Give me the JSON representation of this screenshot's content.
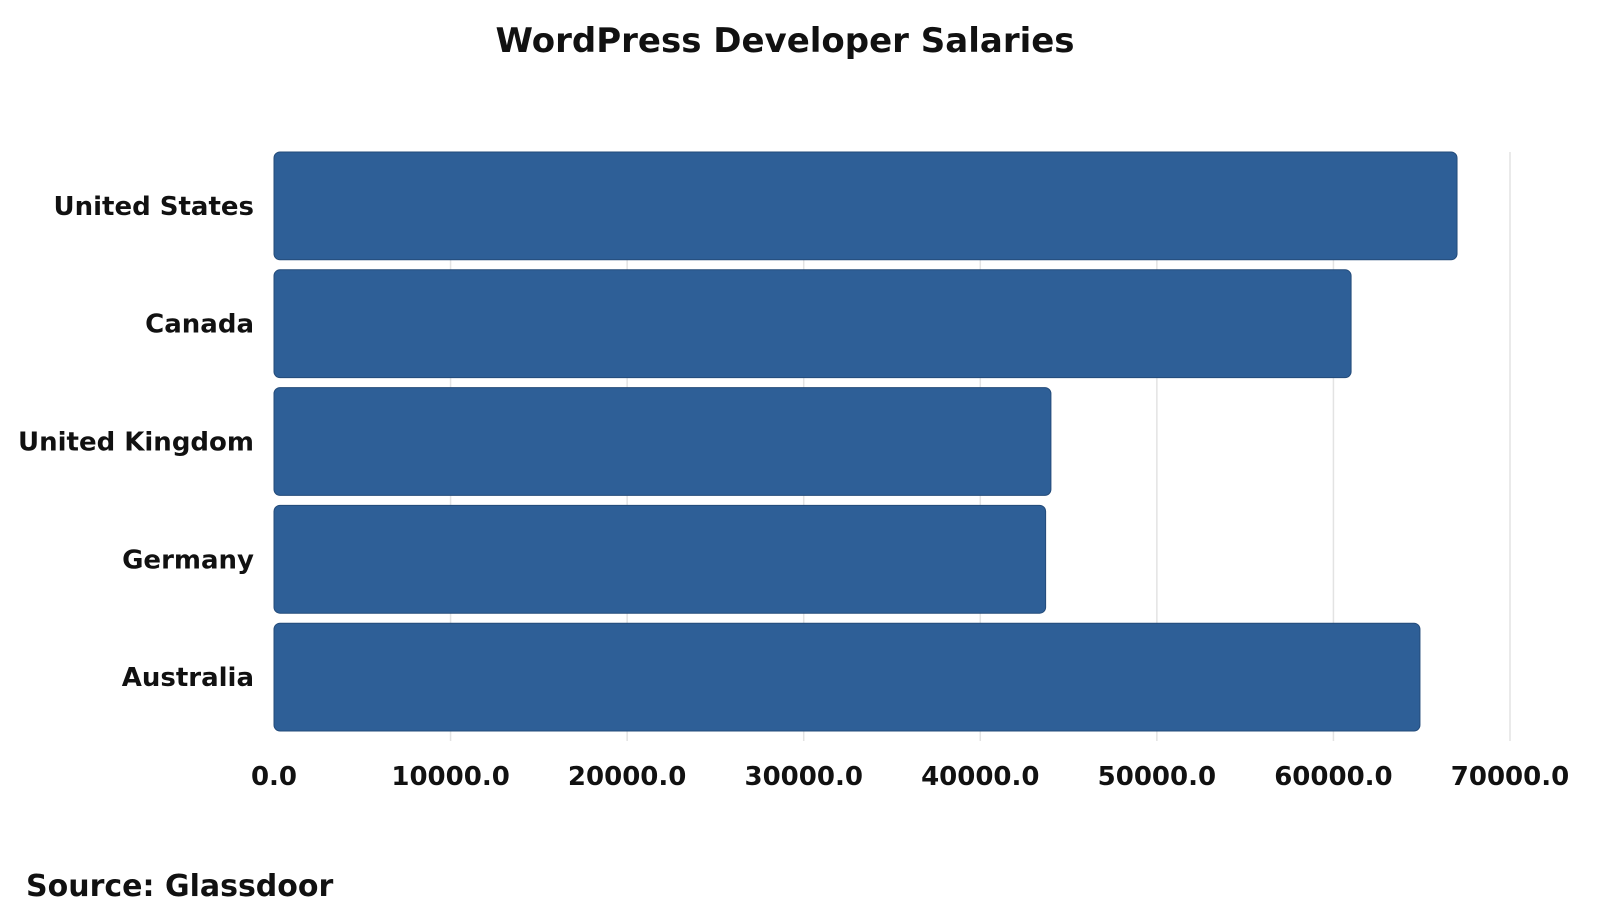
{
  "chart_data": {
    "type": "bar",
    "orientation": "horizontal",
    "title": "WordPress Developer Salaries",
    "categories": [
      "United States",
      "Canada",
      "United Kingdom",
      "Germany",
      "Australia"
    ],
    "values": [
      67000,
      61000,
      44000,
      43700,
      64900
    ],
    "xlim": [
      0,
      70000
    ],
    "x_ticks": [
      0,
      10000,
      20000,
      30000,
      40000,
      50000,
      60000,
      70000
    ],
    "x_tick_labels": [
      "0.0",
      "10000.0",
      "20000.0",
      "30000.0",
      "40000.0",
      "50000.0",
      "60000.0",
      "70000.0"
    ],
    "xlabel": "",
    "ylabel": "",
    "grid": true,
    "bar_color": "#2E5F97",
    "grid_color": "#E3E3E3"
  },
  "source_text": "Source:  Glassdoor"
}
